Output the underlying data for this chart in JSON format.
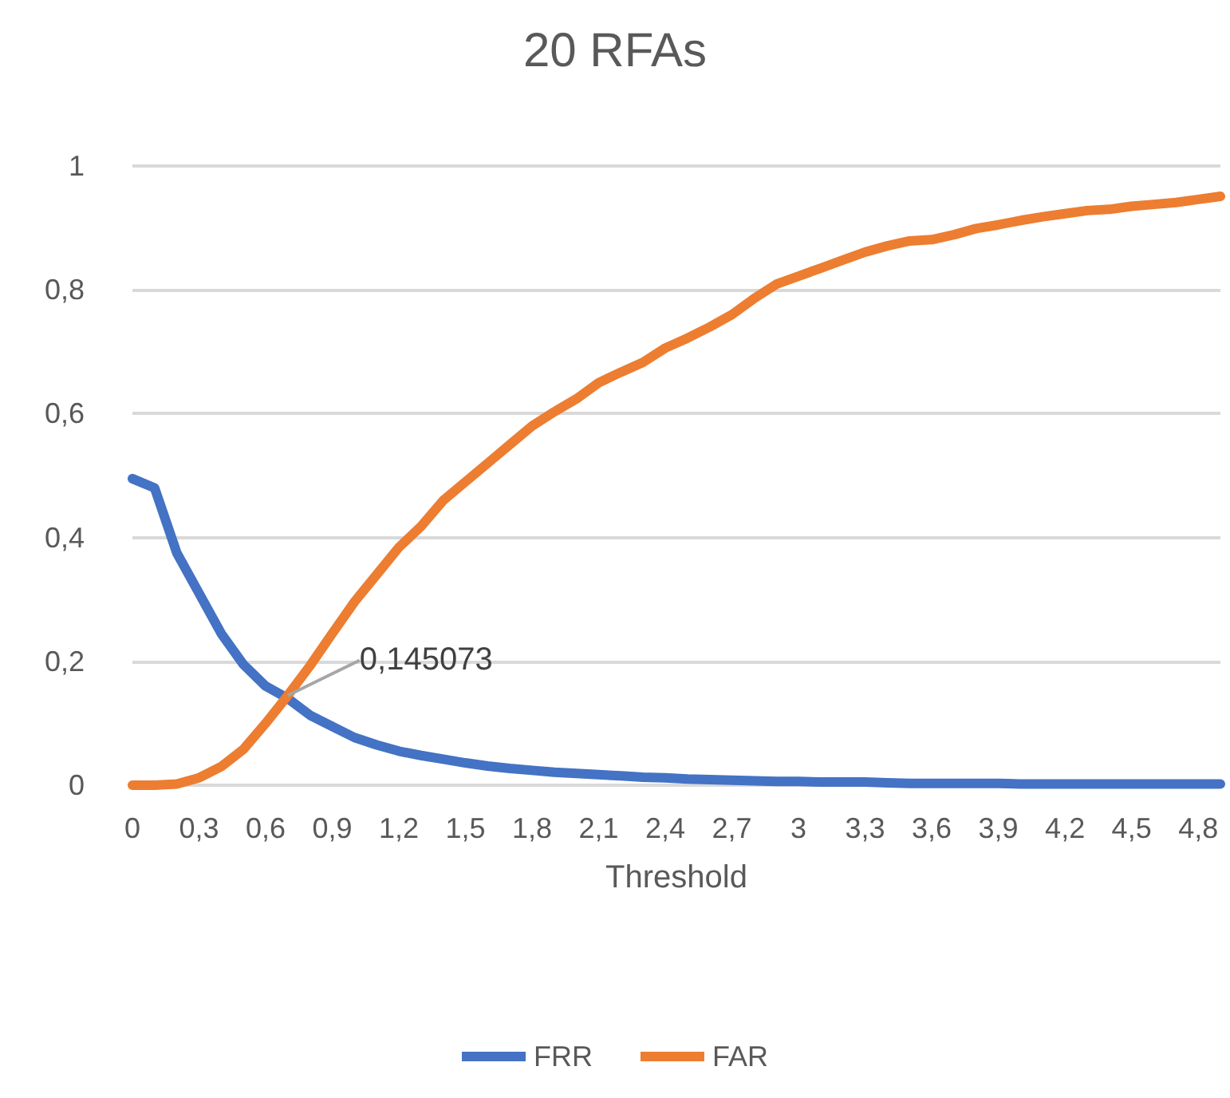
{
  "chart_data": {
    "type": "line",
    "title": "20 RFAs",
    "xlabel": "Threshold",
    "categories": [
      "0",
      null,
      null,
      "0,3",
      null,
      null,
      "0,6",
      null,
      null,
      "0,9",
      null,
      null,
      "1,2",
      null,
      null,
      "1,5",
      null,
      null,
      "1,8",
      null,
      null,
      "2,1",
      null,
      null,
      "2,4",
      null,
      null,
      "2,7",
      null,
      null,
      "3",
      null,
      null,
      "3,3",
      null,
      null,
      "3,6",
      null,
      null,
      "3,9",
      null,
      null,
      "4,2",
      null,
      null,
      "4,5",
      null,
      null,
      "4,8",
      null
    ],
    "series": [
      {
        "name": "FRR",
        "color": "#4472c4",
        "values": [
          0.495,
          0.48,
          0.375,
          0.31,
          0.245,
          0.195,
          0.16,
          0.14,
          0.113,
          0.095,
          0.077,
          0.065,
          0.055,
          0.048,
          0.042,
          0.036,
          0.031,
          0.027,
          0.024,
          0.021,
          0.019,
          0.017,
          0.015,
          0.013,
          0.012,
          0.01,
          0.009,
          0.008,
          0.007,
          0.006,
          0.006,
          0.005,
          0.005,
          0.005,
          0.004,
          0.003,
          0.003,
          0.003,
          0.003,
          0.003,
          0.002,
          0.002,
          0.002,
          0.002,
          0.002,
          0.002,
          0.002,
          0.002,
          0.002,
          0.002
        ]
      },
      {
        "name": "FAR",
        "color": "#ed7d31",
        "values": [
          0,
          0,
          0.002,
          0.012,
          0.03,
          0.058,
          0.1,
          0.145073,
          0.193,
          0.245,
          0.296,
          0.34,
          0.384,
          0.418,
          0.46,
          0.49,
          0.52,
          0.55,
          0.58,
          0.603,
          0.624,
          0.65,
          0.667,
          0.683,
          0.706,
          0.722,
          0.74,
          0.76,
          0.786,
          0.809,
          0.822,
          0.835,
          0.848,
          0.861,
          0.871,
          0.879,
          0.881,
          0.889,
          0.899,
          0.905,
          0.912,
          0.918,
          0.923,
          0.928,
          0.93,
          0.935,
          0.938,
          0.941,
          0.946,
          0.951
        ],
        "value_labels": [
          null,
          null,
          null,
          null,
          null,
          null,
          null,
          "0,145073",
          null,
          null,
          null,
          null,
          null,
          null,
          null,
          null,
          null,
          null,
          null,
          null,
          null,
          null,
          null,
          null,
          null,
          null,
          null,
          null,
          null,
          null,
          null,
          null,
          null,
          null,
          null,
          null,
          null,
          null,
          null,
          null,
          null,
          null,
          null,
          null,
          null,
          null,
          null,
          null,
          null,
          null
        ]
      }
    ],
    "ylim": [
      0,
      1
    ],
    "yticks": [
      0,
      {
        "value": 0.2,
        "label": "0,2"
      },
      {
        "value": 0.4,
        "label": "0,4"
      },
      {
        "value": 0.6,
        "label": "0,6"
      },
      {
        "value": 0.8,
        "label": "0,8"
      },
      1
    ],
    "grid": "y",
    "legend": "bottom",
    "marker": "none",
    "line_style": "solid"
  }
}
